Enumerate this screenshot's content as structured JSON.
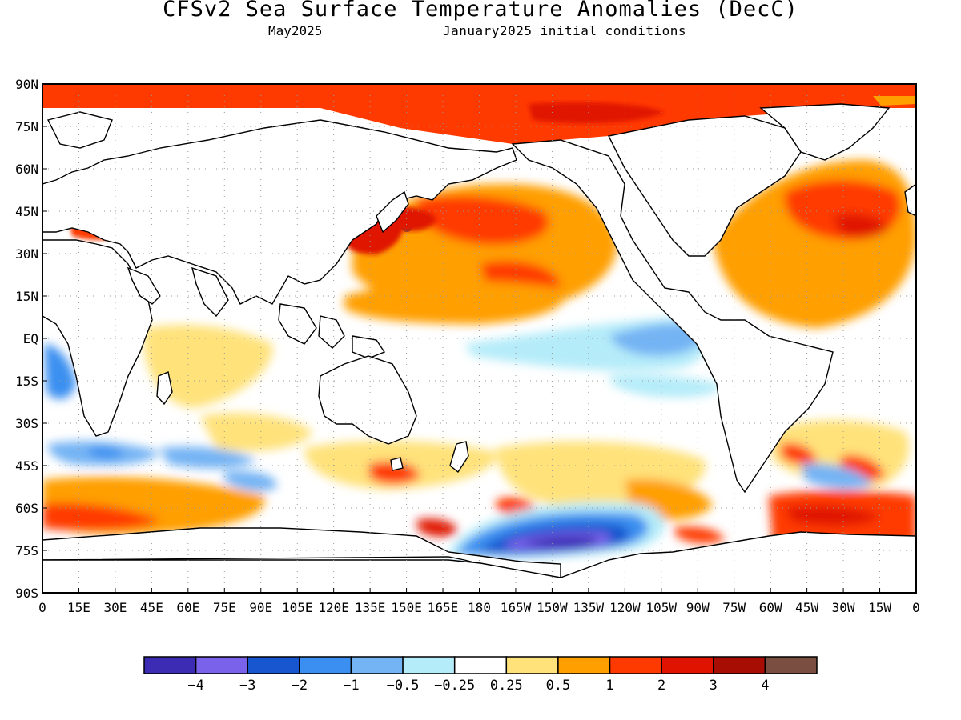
{
  "header": {
    "title": "CFSv2 Sea Surface Temperature Anomalies (DecC)",
    "valid_month": "May2025",
    "init": "January2025 initial conditions"
  },
  "map": {
    "lat_labels": [
      "90N",
      "75N",
      "60N",
      "45N",
      "30N",
      "15N",
      "EQ",
      "15S",
      "30S",
      "45S",
      "60S",
      "75S",
      "90S"
    ],
    "lon_labels": [
      "0",
      "15E",
      "30E",
      "45E",
      "60E",
      "75E",
      "90E",
      "105E",
      "120E",
      "135E",
      "150E",
      "165E",
      "180",
      "165W",
      "150W",
      "135W",
      "120W",
      "105W",
      "90W",
      "75W",
      "60W",
      "45W",
      "30W",
      "15W",
      "0"
    ],
    "land_color": "#ffffff",
    "anomaly_regions": [
      {
        "name": "arctic-warm-band",
        "lon": [
          0,
          360
        ],
        "lat": [
          73,
          90
        ],
        "level": 1
      },
      {
        "name": "arctic-strong-core",
        "lon": [
          205,
          255
        ],
        "lat": [
          76,
          83
        ],
        "level": 2
      },
      {
        "name": "north-pacific-warm",
        "lon": [
          140,
          240
        ],
        "lat": [
          25,
          58
        ],
        "level": 0.5
      },
      {
        "name": "north-pacific-core",
        "lon": [
          150,
          215
        ],
        "lat": [
          33,
          52
        ],
        "level": 1
      },
      {
        "name": "kuroshio-extension-peak",
        "lon": [
          148,
          152
        ],
        "lat": [
          39,
          44
        ],
        "level": 4
      },
      {
        "name": "central-pacific-warm",
        "lon": [
          130,
          230
        ],
        "lat": [
          8,
          28
        ],
        "level": 0.5
      },
      {
        "name": "equatorial-pacific-cool",
        "lon": [
          195,
          280
        ],
        "lat": [
          -20,
          2
        ],
        "level": -0.5
      },
      {
        "name": "north-atlantic-warm",
        "lon": [
          280,
          360
        ],
        "lat": [
          15,
          65
        ],
        "level": 1
      },
      {
        "name": "north-atlantic-core",
        "lon": [
          300,
          350
        ],
        "lat": [
          33,
          58
        ],
        "level": 2
      },
      {
        "name": "southern-ocean-warm",
        "lon": [
          0,
          100
        ],
        "lat": [
          -70,
          -55
        ],
        "level": 1
      },
      {
        "name": "amundsen-bellingshausen-cool",
        "lon": [
          180,
          280
        ],
        "lat": [
          -76,
          -62
        ],
        "level": -3
      },
      {
        "name": "amundsen-cold-core",
        "lon": [
          205,
          250
        ],
        "lat": [
          -75,
          -68
        ],
        "level": -4
      },
      {
        "name": "south-atlantic-warm",
        "lon": [
          300,
          360
        ],
        "lat": [
          -68,
          -55
        ],
        "level": 2
      }
    ]
  },
  "colorbar": {
    "labels": [
      "−4",
      "−3",
      "−2",
      "−1",
      "−0.5",
      "−0.25",
      "0.25",
      "0.5",
      "1",
      "2",
      "3",
      "4"
    ],
    "colors": [
      "#3b2cb3",
      "#7a62ea",
      "#1856cf",
      "#3a8ff0",
      "#74b4f4",
      "#b5ecf9",
      "#ffffff",
      "#ffe27a",
      "#ff9f00",
      "#ff3a00",
      "#e01300",
      "#a80d04",
      "#7a4f42"
    ]
  }
}
